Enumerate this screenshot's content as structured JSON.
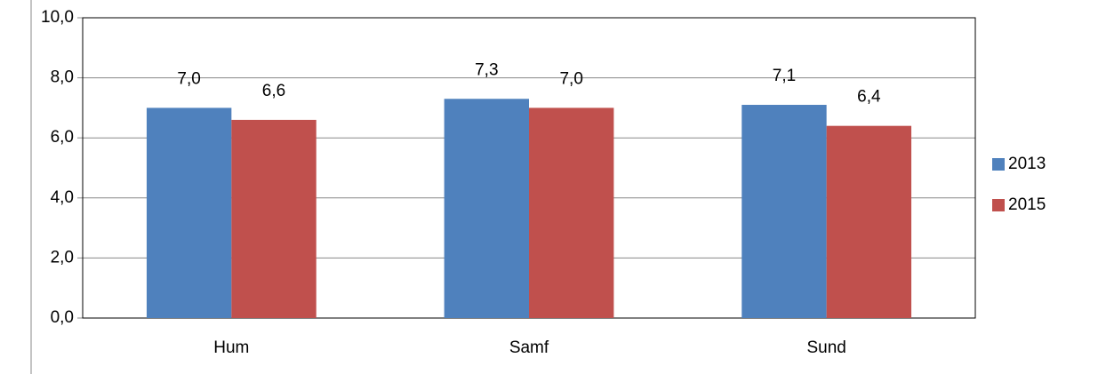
{
  "chart_data": {
    "type": "bar",
    "categories": [
      "Hum",
      "Samf",
      "Sund"
    ],
    "series": [
      {
        "name": "2013",
        "color": "#4f81bd",
        "values": [
          7.0,
          7.3,
          7.1
        ],
        "value_labels": [
          "7,0",
          "7,3",
          "7,1"
        ]
      },
      {
        "name": "2015",
        "color": "#c0504d",
        "values": [
          6.6,
          7.0,
          6.4
        ],
        "value_labels": [
          "6,6",
          "7,0",
          "6,4"
        ]
      }
    ],
    "ylim": [
      0,
      10
    ],
    "yticks": [
      {
        "value": 0,
        "label": "0,0"
      },
      {
        "value": 2,
        "label": "2,0"
      },
      {
        "value": 4,
        "label": "4,0"
      },
      {
        "value": 6,
        "label": "6,0"
      },
      {
        "value": 8,
        "label": "8,0"
      },
      {
        "value": 10,
        "label": "10,0"
      }
    ],
    "grid": true,
    "legend": "right"
  }
}
